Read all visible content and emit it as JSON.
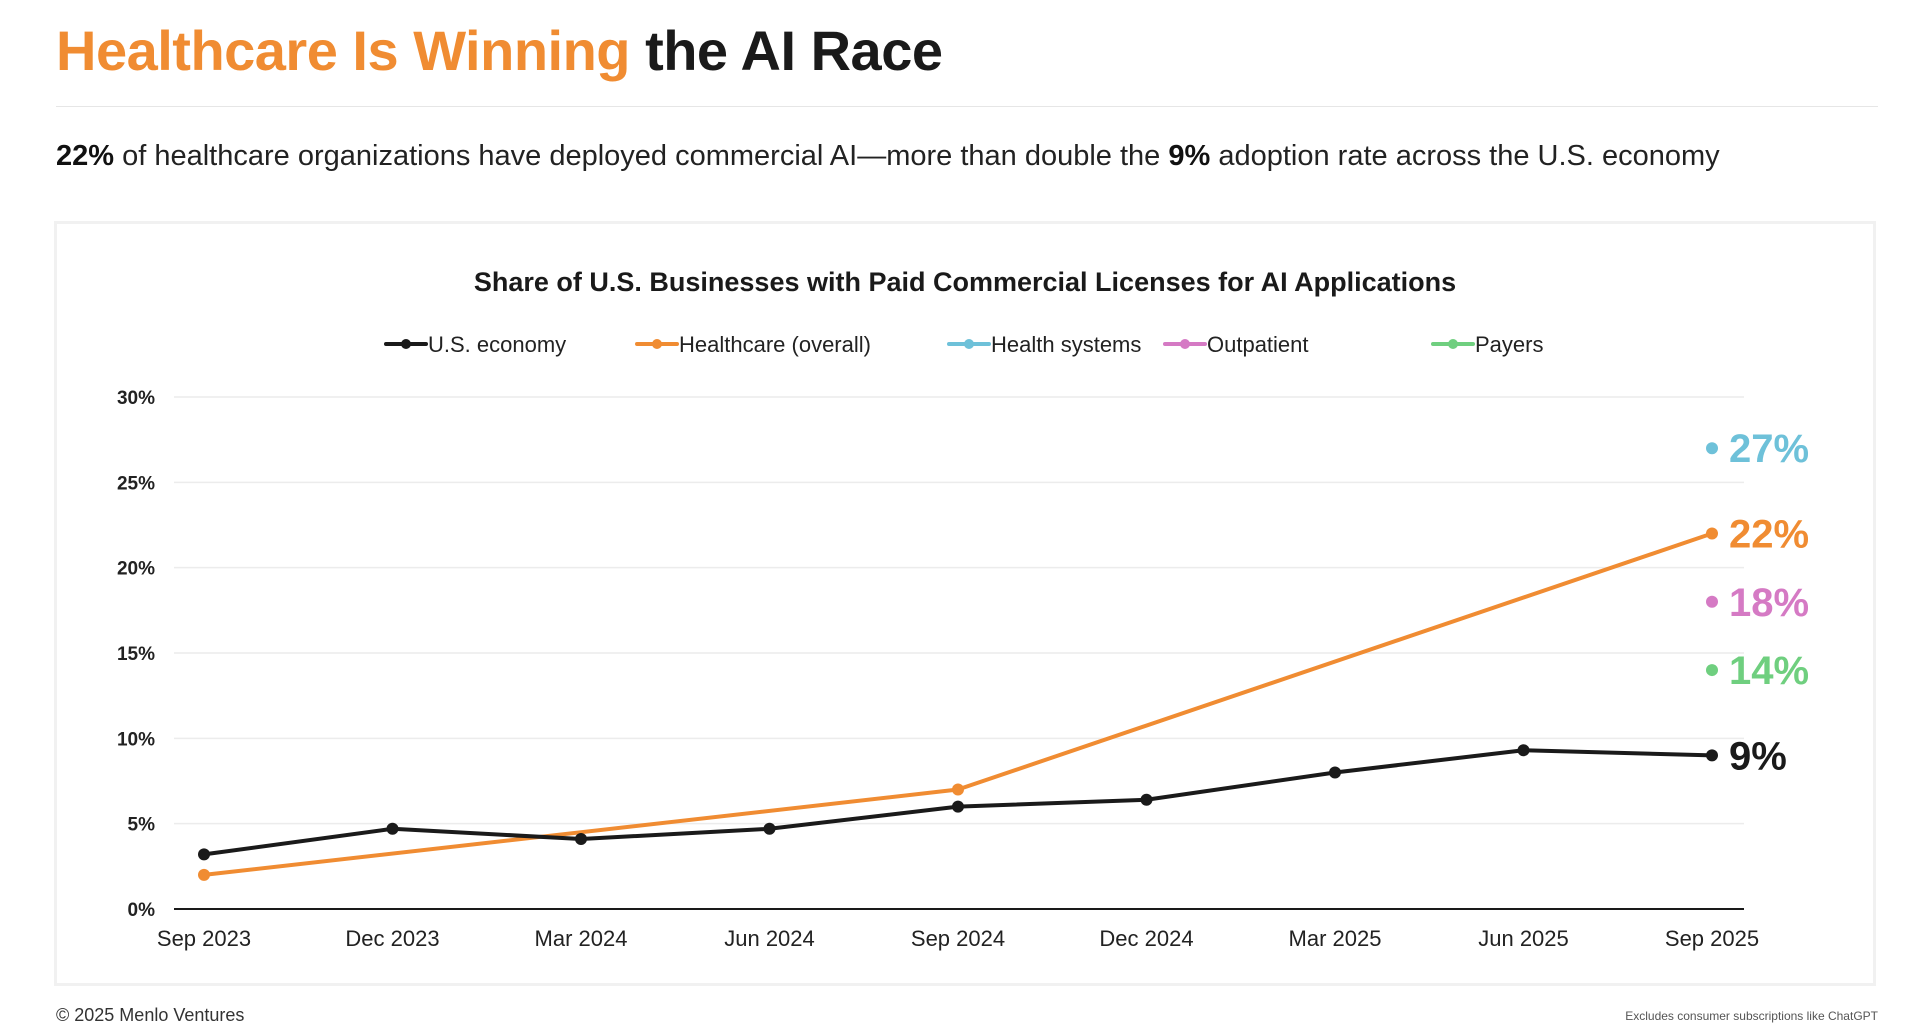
{
  "header": {
    "title_accent": "Healthcare Is Winning",
    "title_rest": "the AI Race"
  },
  "subtitle": {
    "lead_value": "22%",
    "text_1": "of healthcare organizations have deployed commercial AI—more than double the",
    "mid_value": "9%",
    "text_2": "adoption rate across the U.S. economy"
  },
  "footer": {
    "copyright": "© 2025 Menlo Ventures",
    "note": "Excludes consumer subscriptions like ChatGPT"
  },
  "colors": {
    "us_economy": "#1a1a1a",
    "healthcare": "#f08c32",
    "health_systems": "#6ec1d9",
    "outpatient": "#d57ac4",
    "payers": "#6fcf7f",
    "grid": "#ececec"
  },
  "chart_data": {
    "type": "line",
    "title": "Share of U.S. Businesses with Paid Commercial Licenses for AI Applications",
    "x": [
      "Sep 2023",
      "Dec 2023",
      "Mar 2024",
      "Jun 2024",
      "Sep 2024",
      "Dec 2024",
      "Mar 2025",
      "Jun 2025",
      "Sep 2025"
    ],
    "ylim": [
      0,
      30
    ],
    "yticks": [
      0,
      5,
      10,
      15,
      20,
      25,
      30
    ],
    "ytick_labels": [
      "0%",
      "5%",
      "10%",
      "15%",
      "20%",
      "25%",
      "30%"
    ],
    "grid": true,
    "legend": "top",
    "series": [
      {
        "name": "U.S. economy",
        "color_key": "us_economy",
        "x": [
          "Sep 2023",
          "Dec 2023",
          "Mar 2024",
          "Jun 2024",
          "Sep 2024",
          "Dec 2024",
          "Mar 2025",
          "Jun 2025",
          "Sep 2025"
        ],
        "values": [
          3.2,
          4.7,
          4.1,
          4.7,
          6.0,
          6.4,
          8.0,
          9.3,
          9.0
        ],
        "end_label": "9%"
      },
      {
        "name": "Healthcare (overall)",
        "color_key": "healthcare",
        "x": [
          "Sep 2023",
          "Sep 2024",
          "Sep 2025"
        ],
        "values": [
          2.0,
          7.0,
          22.0
        ],
        "end_label": "22%"
      },
      {
        "name": "Health systems",
        "color_key": "health_systems",
        "x": [
          "Sep 2025"
        ],
        "values": [
          27.0
        ],
        "end_label": "27%"
      },
      {
        "name": "Outpatient",
        "color_key": "outpatient",
        "x": [
          "Sep 2025"
        ],
        "values": [
          18.0
        ],
        "end_label": "18%"
      },
      {
        "name": "Payers",
        "color_key": "payers",
        "x": [
          "Sep 2025"
        ],
        "values": [
          14.0
        ],
        "end_label": "14%"
      }
    ]
  }
}
